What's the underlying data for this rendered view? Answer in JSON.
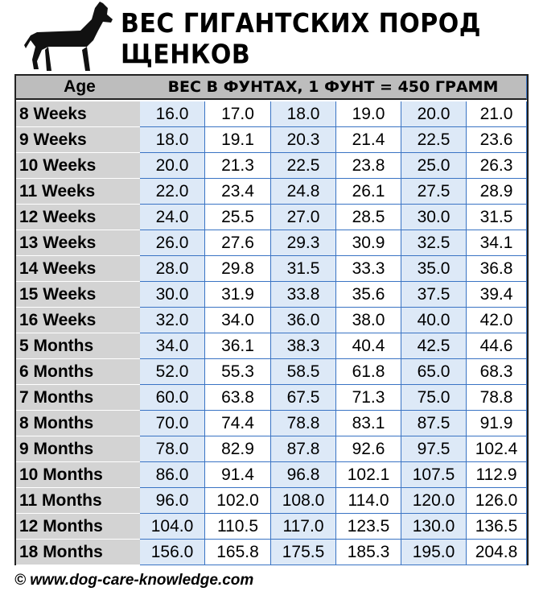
{
  "header": {
    "title": "ВЕС ГИГАНТСКИХ ПОРОД ЩЕНКОВ"
  },
  "table": {
    "age_header": "Age",
    "weight_header": "ВЕС В ФУНТАХ, 1 ФУНТ = 450 ГРАММ",
    "rows": [
      {
        "age": "8 Weeks",
        "cells": [
          "16.0",
          "17.0",
          "18.0",
          "19.0",
          "20.0",
          "21.0"
        ]
      },
      {
        "age": "9 Weeks",
        "cells": [
          "18.0",
          "19.1",
          "20.3",
          "21.4",
          "22.5",
          "23.6"
        ]
      },
      {
        "age": "10 Weeks",
        "cells": [
          "20.0",
          "21.3",
          "22.5",
          "23.8",
          "25.0",
          "26.3"
        ]
      },
      {
        "age": "11 Weeks",
        "cells": [
          "22.0",
          "23.4",
          "24.8",
          "26.1",
          "27.5",
          "28.9"
        ]
      },
      {
        "age": "12 Weeks",
        "cells": [
          "24.0",
          "25.5",
          "27.0",
          "28.5",
          "30.0",
          "31.5"
        ]
      },
      {
        "age": "13 Weeks",
        "cells": [
          "26.0",
          "27.6",
          "29.3",
          "30.9",
          "32.5",
          "34.1"
        ]
      },
      {
        "age": "14 Weeks",
        "cells": [
          "28.0",
          "29.8",
          "31.5",
          "33.3",
          "35.0",
          "36.8"
        ]
      },
      {
        "age": "15 Weeks",
        "cells": [
          "30.0",
          "31.9",
          "33.8",
          "35.6",
          "37.5",
          "39.4"
        ]
      },
      {
        "age": "16 Weeks",
        "cells": [
          "32.0",
          "34.0",
          "36.0",
          "38.0",
          "40.0",
          "42.0"
        ]
      },
      {
        "age": "5 Months",
        "cells": [
          "34.0",
          "36.1",
          "38.3",
          "40.4",
          "42.5",
          "44.6"
        ]
      },
      {
        "age": "6 Months",
        "cells": [
          "52.0",
          "55.3",
          "58.5",
          "61.8",
          "65.0",
          "68.3"
        ]
      },
      {
        "age": "7 Months",
        "cells": [
          "60.0",
          "63.8",
          "67.5",
          "71.3",
          "75.0",
          "78.8"
        ]
      },
      {
        "age": "8 Months",
        "cells": [
          "70.0",
          "74.4",
          "78.8",
          "83.1",
          "87.5",
          "91.9"
        ]
      },
      {
        "age": "9 Months",
        "cells": [
          "78.0",
          "82.9",
          "87.8",
          "92.6",
          "97.5",
          "102.4"
        ]
      },
      {
        "age": "10 Months",
        "cells": [
          "86.0",
          "91.4",
          "96.8",
          "102.1",
          "107.5",
          "112.9"
        ]
      },
      {
        "age": "11 Months",
        "cells": [
          "96.0",
          "102.0",
          "108.0",
          "114.0",
          "120.0",
          "126.0"
        ]
      },
      {
        "age": "12 Months",
        "cells": [
          "104.0",
          "110.5",
          "117.0",
          "123.5",
          "130.0",
          "136.5"
        ]
      },
      {
        "age": "18 Months",
        "cells": [
          "156.0",
          "165.8",
          "175.5",
          "185.3",
          "195.0",
          "204.8"
        ]
      }
    ]
  },
  "footer": {
    "text": "© www.dog-care-knowledge.com"
  }
}
